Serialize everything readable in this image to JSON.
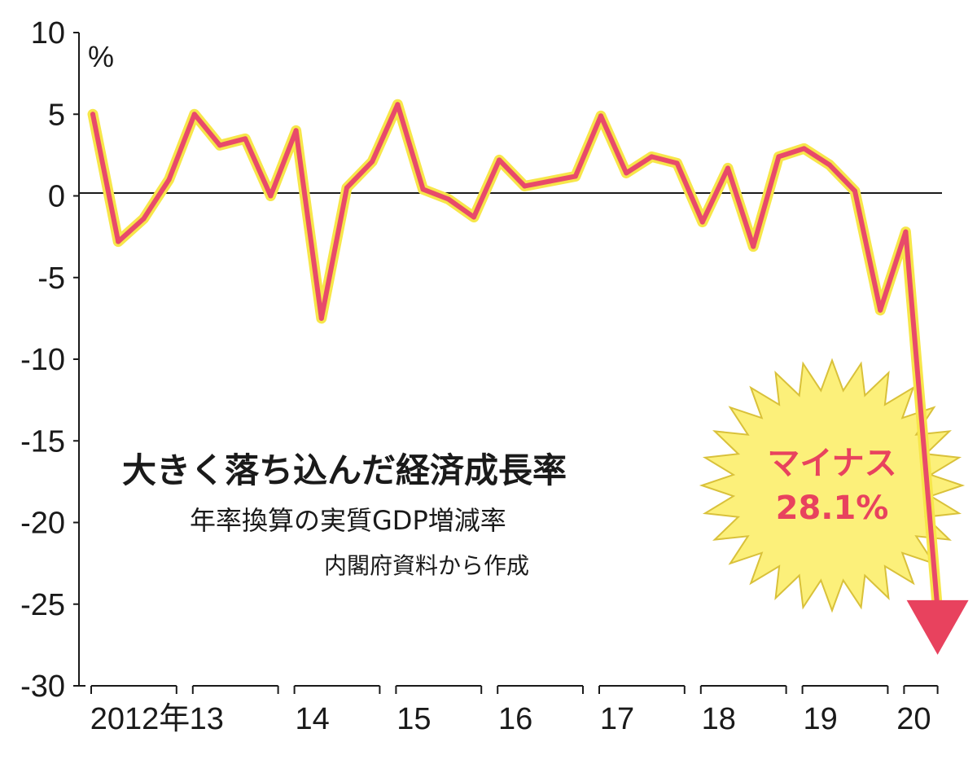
{
  "chart_data": {
    "type": "line",
    "title": "大きく落ち込んだ経済成長率",
    "subtitle": "年率換算の実質GDP増減率",
    "source": "内閣府資料から作成",
    "ylabel": "%",
    "ylim": [
      -30,
      10
    ],
    "y_ticks": [
      "10",
      "5",
      "0",
      "-5",
      "-10",
      "-15",
      "-20",
      "-25",
      "-30"
    ],
    "x_tick_labels": [
      "2012年",
      "13",
      "14",
      "15",
      "16",
      "17",
      "18",
      "19",
      "20"
    ],
    "series": [
      {
        "values": [
          5.0,
          -2.8,
          -1.4,
          1.0,
          5.0,
          3.1,
          3.5,
          0.0,
          4.0,
          -7.5,
          0.5,
          2.1,
          5.6,
          0.4,
          -0.2,
          -1.3,
          2.2,
          0.6,
          0.9,
          1.2,
          4.9,
          1.4,
          2.4,
          2.0,
          -1.6,
          1.7,
          -3.1,
          2.4,
          2.9,
          1.9,
          0.3,
          -7.0,
          -2.2,
          -28.1
        ]
      }
    ],
    "start_period": "2012 Q1",
    "annotation": {
      "line1": "マイナス",
      "line2": "28.1%"
    },
    "colors": {
      "line": "#e84a6a",
      "line_glow": "#f7e64a",
      "burst_fill": "#fcf07a",
      "burst_stroke": "#d9c13a",
      "callout_text": "#e8425e",
      "arrow": "#e8425e"
    }
  }
}
